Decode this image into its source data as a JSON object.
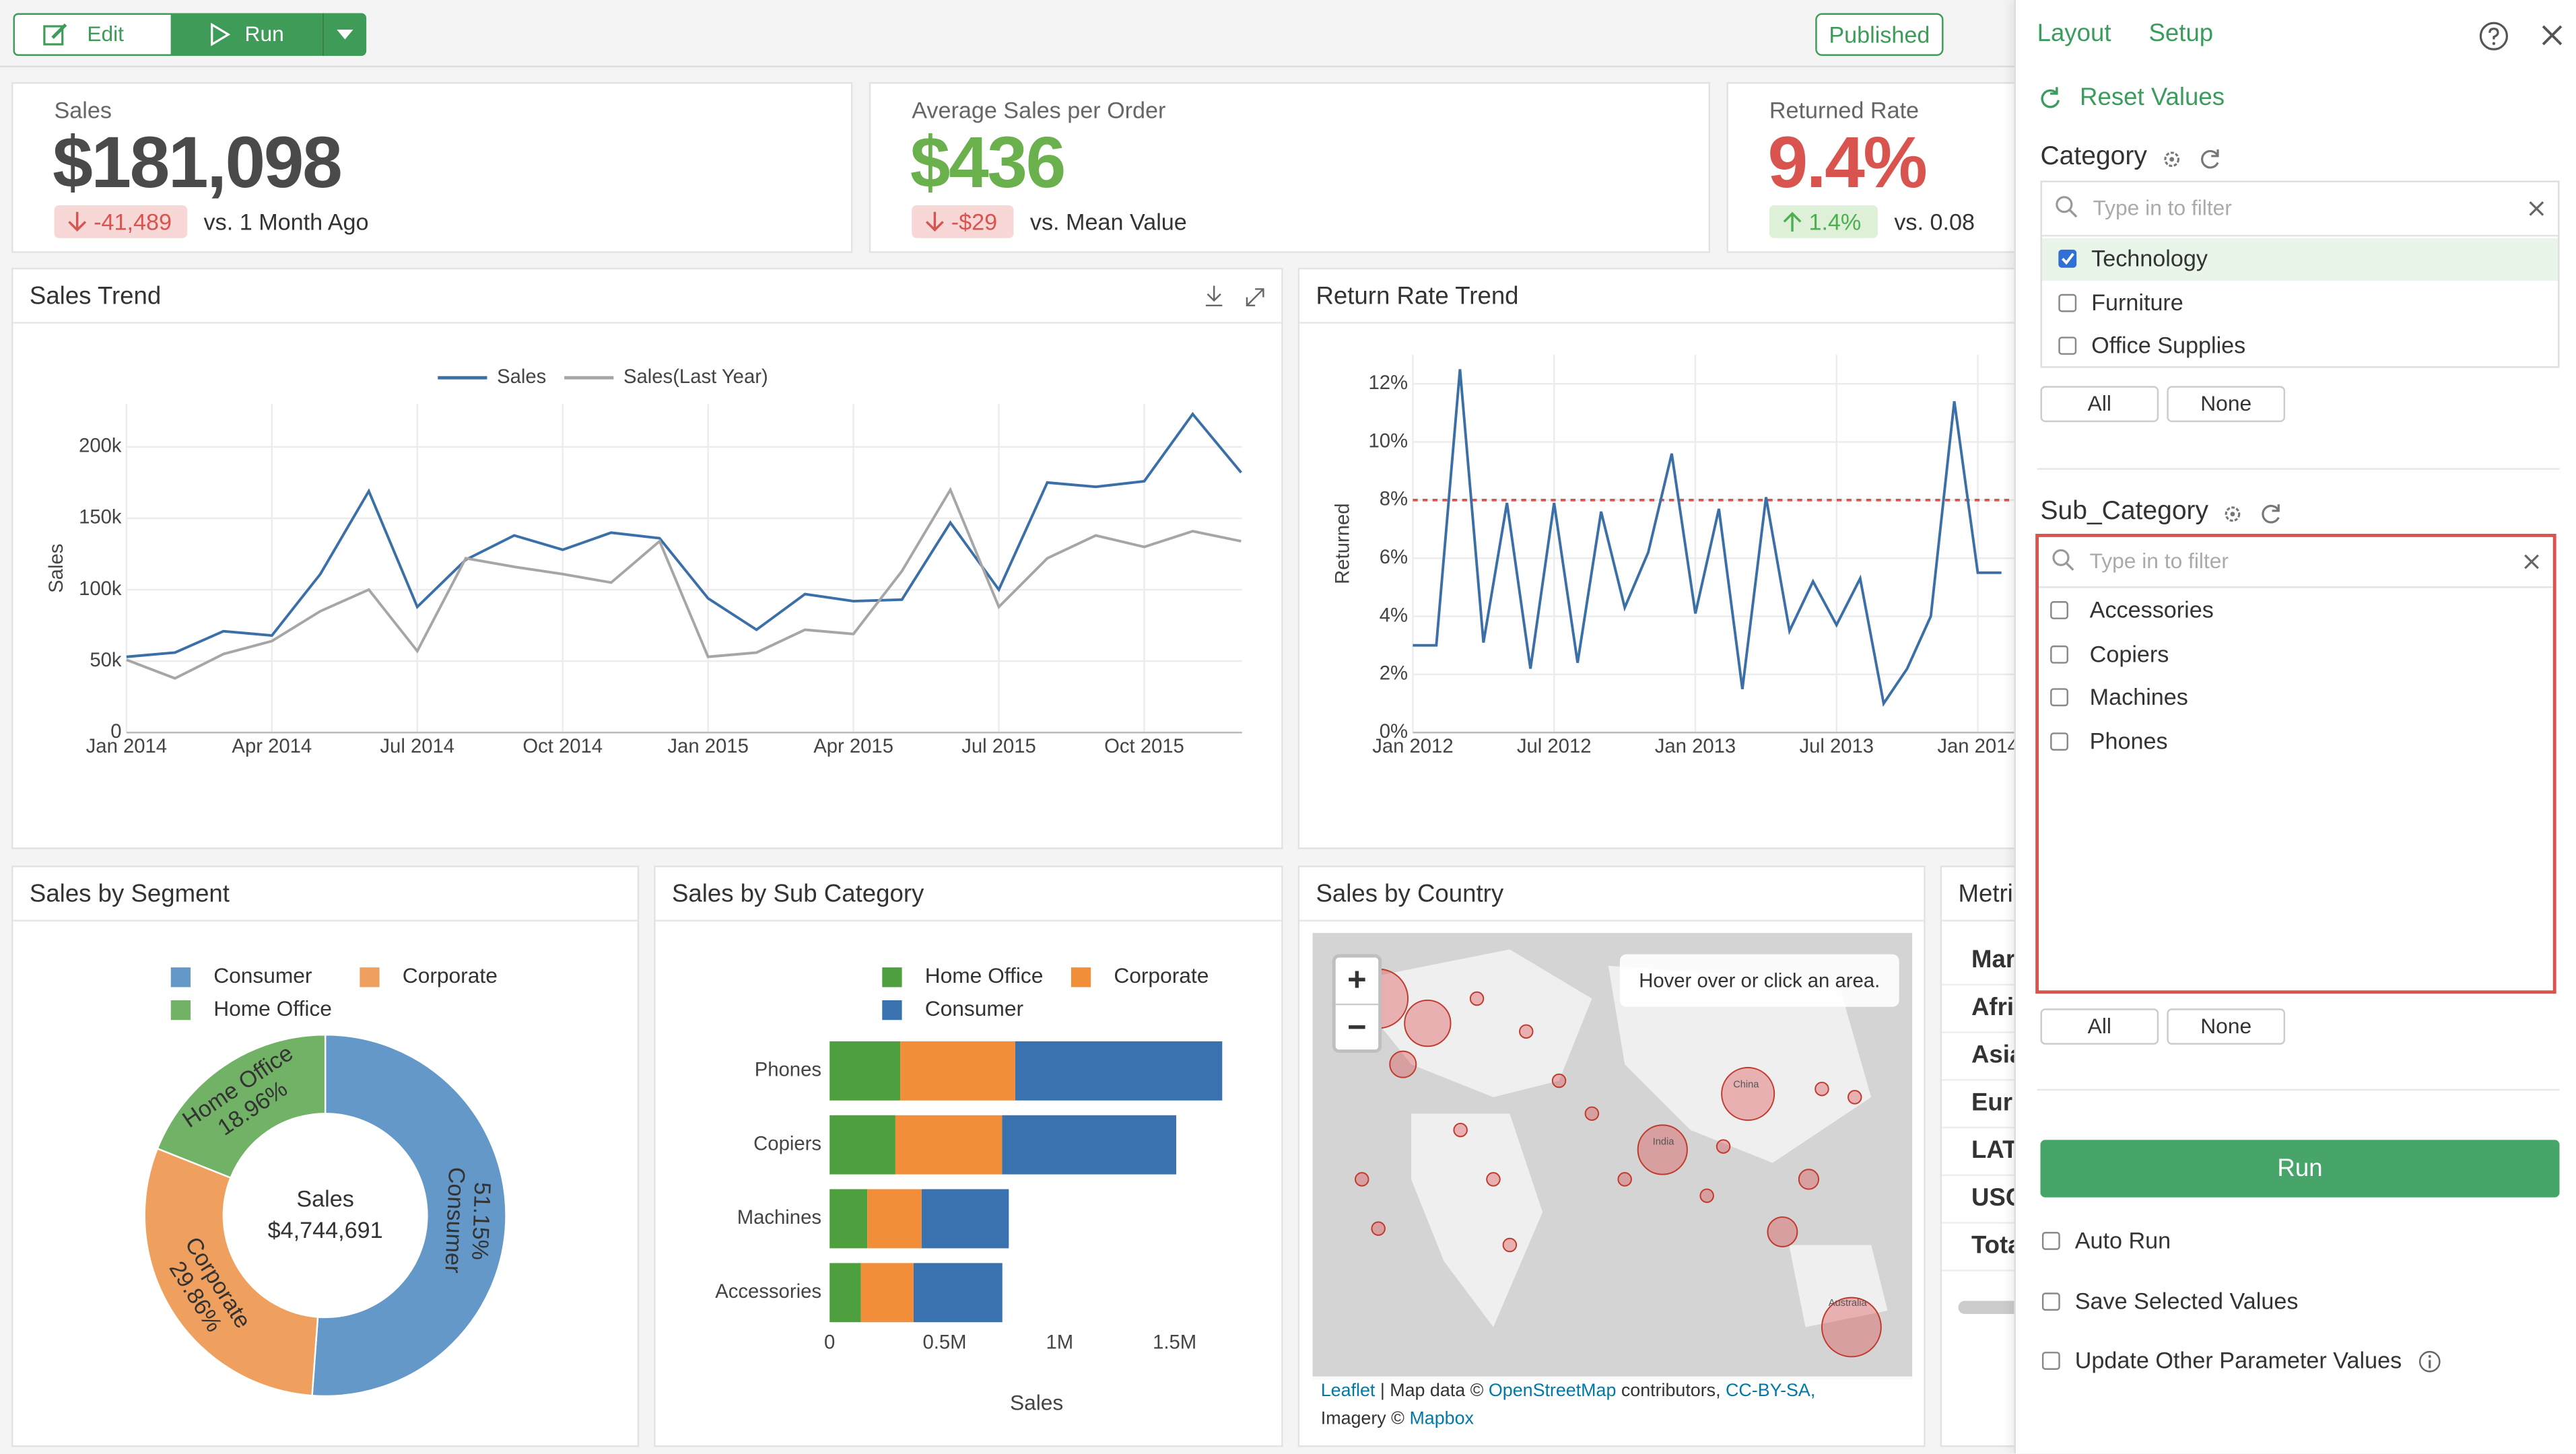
{
  "toolbar": {
    "edit": "Edit",
    "run": "Run",
    "status": "Published"
  },
  "kpis": [
    {
      "label": "Sales",
      "value": "$181,098",
      "delta": "-41,489",
      "comparison": "vs. 1 Month Ago",
      "trend": "down",
      "value_color": "#4a4a4a"
    },
    {
      "label": "Average Sales per Order",
      "value": "$436",
      "delta": "-$29",
      "comparison": "vs. Mean Value",
      "trend": "down",
      "value_color": "#6ab04c"
    },
    {
      "label": "Returned Rate",
      "value": "9.4%",
      "delta": "1.4%",
      "comparison": "vs. 0.08",
      "trend": "up",
      "value_color": "#d9534f"
    }
  ],
  "sales_trend": {
    "type": "line",
    "title": "Sales Trend",
    "y_label": "Sales",
    "categories": [
      "Jan 2014",
      null,
      null,
      "Apr 2014",
      null,
      null,
      "Jul 2014",
      null,
      null,
      "Oct 2014",
      null,
      null,
      "Jan 2015",
      null,
      null,
      "Apr 2015",
      null,
      null,
      "Jul 2015",
      null,
      null,
      "Oct 2015",
      null,
      null
    ],
    "series": [
      {
        "name": "Sales",
        "color": "#3b6fa8",
        "values": [
          53000,
          56000,
          71000,
          68000,
          111000,
          169000,
          88000,
          121000,
          138000,
          128000,
          140000,
          136000,
          94000,
          72000,
          97000,
          92000,
          93000,
          147000,
          100000,
          175000,
          172000,
          176000,
          223000,
          182000
        ]
      },
      {
        "name": "Sales(Last Year)",
        "color": "#a6a6a6",
        "values": [
          51000,
          38000,
          55000,
          64000,
          85000,
          100000,
          57000,
          122000,
          116000,
          111000,
          105000,
          134000,
          53000,
          56000,
          72000,
          69000,
          113000,
          170000,
          88000,
          122000,
          138000,
          130000,
          141000,
          134000
        ]
      }
    ],
    "ylim": [
      0,
      230000
    ],
    "yticks": [
      0,
      {
        "value": 50000,
        "label": "50k"
      },
      {
        "value": 100000,
        "label": "100k"
      },
      {
        "value": 150000,
        "label": "150k"
      },
      {
        "value": 200000,
        "label": "200k"
      }
    ],
    "grid": true
  },
  "return_trend": {
    "type": "line",
    "title": "Return Rate Trend",
    "y_label": "Returned",
    "categories": [
      "Jan 2012",
      null,
      null,
      null,
      null,
      null,
      "Jul 2012",
      null,
      null,
      null,
      null,
      null,
      "Jan 2013",
      null,
      null,
      null,
      null,
      null,
      "Jul 2013",
      null,
      null,
      null,
      null,
      null,
      "Jan 2014",
      null
    ],
    "color": "#3b6fa8",
    "values": [
      3.0,
      3.0,
      12.5,
      3.1,
      7.9,
      2.2,
      7.9,
      2.4,
      7.6,
      4.3,
      6.2,
      9.6,
      4.1,
      7.7,
      1.5,
      8.1,
      3.5,
      5.2,
      3.7,
      5.3,
      1.0,
      2.2,
      4.0,
      11.4,
      5.5,
      5.5
    ],
    "ylim": [
      0,
      13
    ],
    "yticks": [
      {
        "value": 0,
        "label": "0%"
      },
      {
        "value": 2,
        "label": "2%"
      },
      {
        "value": 4,
        "label": "4%"
      },
      {
        "value": 6,
        "label": "6%"
      },
      {
        "value": 8,
        "label": "8%"
      },
      {
        "value": 10,
        "label": "10%"
      },
      {
        "value": 12,
        "label": "12%"
      }
    ],
    "reference_line": 8,
    "reference_color": "#d9534f",
    "grid": true
  },
  "segment": {
    "type": "pie",
    "donut": true,
    "title": "Sales by Segment",
    "center_label": "Sales",
    "center_value": "$4,744,691",
    "categories": [
      "Consumer",
      "Corporate",
      "Home Office"
    ],
    "values": [
      51.15,
      29.86,
      18.96
    ],
    "value_labels": [
      "51.15%",
      "29.86%",
      "18.96%"
    ],
    "colors": [
      "#6398c8",
      "#f0a05e",
      "#72b266"
    ]
  },
  "subcategory": {
    "type": "bar",
    "orientation": "horizontal",
    "stacked": true,
    "title": "Sales by Sub Category",
    "x_label": "Sales",
    "categories": [
      "Phones",
      "Copiers",
      "Machines",
      "Accessories"
    ],
    "series": [
      {
        "name": "Home Office",
        "color": "#4e9f3d",
        "values": [
          307000,
          286000,
          164000,
          136000
        ]
      },
      {
        "name": "Corporate",
        "color": "#f28e3a",
        "values": [
          500000,
          464000,
          236000,
          229000
        ]
      },
      {
        "name": "Consumer",
        "color": "#3a72b0",
        "values": [
          900000,
          757000,
          379000,
          386000
        ]
      }
    ],
    "xlim": [
      0,
      1800000
    ],
    "xticks": [
      0,
      {
        "value": 500000,
        "label": "0.5M"
      },
      {
        "value": 1000000,
        "label": "1M"
      },
      {
        "value": 1500000,
        "label": "1.5M"
      }
    ]
  },
  "map": {
    "title": "Sales by Country",
    "hint": "Hover over or click an area.",
    "zoom": [
      "+",
      "−"
    ],
    "labels": [
      "China",
      "India",
      "Australia"
    ],
    "attribution": {
      "leaflet": "Leaflet",
      "sep": "| Map data ©",
      "osm": "OpenStreetMap",
      "contrib": "contributors,",
      "license": "CC-BY-SA,",
      "imagery": "Imagery ©",
      "mapbox": "Mapbox"
    }
  },
  "metrics": {
    "title": "Metri",
    "rows": [
      "Mar",
      "Afri",
      "Asia",
      "Eur",
      "LAT",
      "USC",
      "Tota"
    ]
  },
  "sidebar": {
    "tabs": [
      "Layout",
      "Setup"
    ],
    "reset": "Reset Values",
    "filters": [
      {
        "name": "Category",
        "placeholder": "Type in to filter",
        "options": [
          {
            "label": "Technology",
            "checked": true
          },
          {
            "label": "Furniture",
            "checked": false
          },
          {
            "label": "Office Supplies",
            "checked": false
          }
        ],
        "all": "All",
        "none": "None",
        "highlighted": false
      },
      {
        "name": "Sub_Category",
        "placeholder": "Type in to filter",
        "options": [
          {
            "label": "Accessories",
            "checked": false
          },
          {
            "label": "Copiers",
            "checked": false
          },
          {
            "label": "Machines",
            "checked": false
          },
          {
            "label": "Phones",
            "checked": false
          }
        ],
        "all": "All",
        "none": "None",
        "highlighted": true
      }
    ],
    "run": "Run",
    "checkboxes": [
      {
        "label": "Auto Run",
        "checked": false
      },
      {
        "label": "Save Selected Values",
        "checked": false
      },
      {
        "label": "Update Other Parameter Values",
        "checked": false
      }
    ]
  }
}
